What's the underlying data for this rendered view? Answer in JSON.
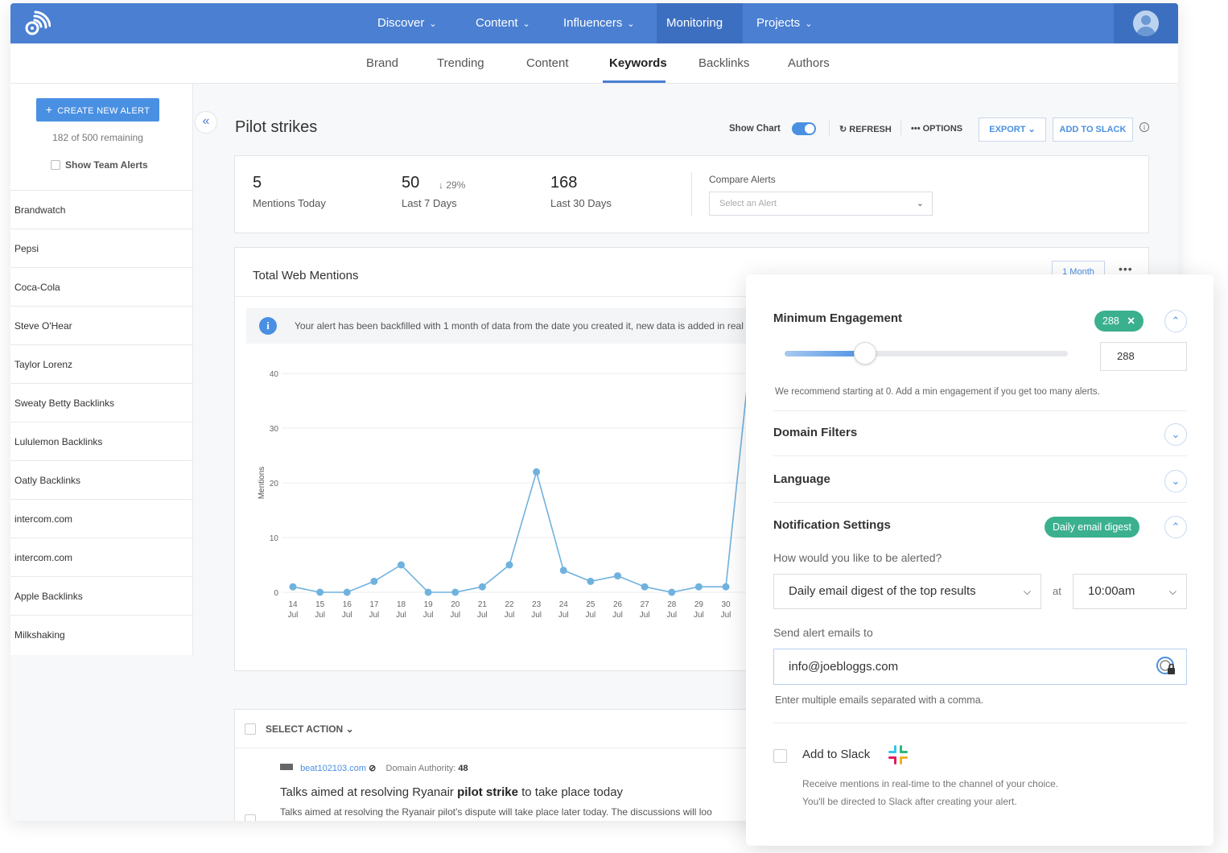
{
  "topnav": {
    "items": [
      {
        "label": "Discover"
      },
      {
        "label": "Content"
      },
      {
        "label": "Influencers"
      },
      {
        "label": "Monitoring"
      },
      {
        "label": "Projects"
      }
    ]
  },
  "subnav": {
    "tabs": [
      {
        "label": "Brand"
      },
      {
        "label": "Trending"
      },
      {
        "label": "Content"
      },
      {
        "label": "Keywords"
      },
      {
        "label": "Backlinks"
      },
      {
        "label": "Authors"
      }
    ]
  },
  "sidebar": {
    "create_label": "CREATE NEW ALERT",
    "remaining": "182 of 500 remaining",
    "team_alerts": "Show Team Alerts",
    "alerts": [
      "Brandwatch",
      "Pepsi",
      "Coca-Cola",
      "Steve O'Hear",
      "Taylor Lorenz",
      "Sweaty Betty Backlinks",
      "Lululemon Backlinks",
      "Oatly Backlinks",
      "intercom.com",
      "intercom.com",
      "Apple Backlinks",
      "Milkshaking"
    ]
  },
  "page": {
    "title": "Pilot strikes",
    "show_chart": "Show Chart",
    "refresh": "REFRESH",
    "options": "OPTIONS",
    "export": "EXPORT",
    "add_to_slack": "ADD TO SLACK"
  },
  "stats": {
    "today_value": "5",
    "today_label": "Mentions Today",
    "week_value": "50",
    "week_delta": "29%",
    "week_label": "Last 7 Days",
    "month_value": "168",
    "month_label": "Last 30 Days",
    "compare_label": "Compare Alerts",
    "compare_placeholder": "Select an Alert"
  },
  "chart_card": {
    "title": "Total Web Mentions",
    "period": "1 Month",
    "notice": "Your alert has been backfilled with 1 month of data from the date you created it, new data is added in real"
  },
  "chart_data": {
    "type": "line",
    "ylabel": "Mentions",
    "ylim": [
      0,
      40
    ],
    "yticks": [
      0,
      10,
      20,
      30,
      40
    ],
    "categories": [
      "14 Jul",
      "15 Jul",
      "16 Jul",
      "17 Jul",
      "18 Jul",
      "19 Jul",
      "20 Jul",
      "21 Jul",
      "22 Jul",
      "23 Jul",
      "24 Jul",
      "25 Jul",
      "26 Jul",
      "27 Jul",
      "28 Jul",
      "29 Jul",
      "30 Jul"
    ],
    "series": [
      {
        "name": "Pilot strikes",
        "color": "#6fb2de",
        "values": [
          1,
          0,
          0,
          2,
          5,
          0,
          0,
          1,
          5,
          22,
          4,
          2,
          3,
          1,
          0,
          1,
          1
        ]
      }
    ],
    "legend": "bottom"
  },
  "results": {
    "select_action": "SELECT ACTION",
    "source": "beat102103.com",
    "authority_label": "Domain Authority:",
    "authority_value": "48",
    "title_before": "Talks aimed at resolving Ryanair ",
    "title_bold": "pilot strike",
    "title_after": " to take place today",
    "snippet": "Talks aimed at resolving the Ryanair pilot's dispute will take place later today. The discussions will loo"
  },
  "panel": {
    "min_engagement": {
      "title": "Minimum Engagement",
      "chip": "288",
      "value": "288",
      "level": 0.29,
      "hint": "We recommend starting at 0. Add a min engagement if you get too many alerts."
    },
    "domain_filters": "Domain Filters",
    "language": "Language",
    "notifications": {
      "title": "Notification Settings",
      "chip": "Daily email digest",
      "question": "How would you like to be alerted?",
      "frequency": "Daily email digest of the top results",
      "at": "at",
      "time": "10:00am",
      "send_to_label": "Send alert emails to",
      "email": "info@joebloggs.com",
      "email_hint": "Enter multiple emails separated with a comma."
    },
    "slack": {
      "title": "Add to Slack",
      "desc1": "Receive mentions in real-time to the channel of your choice.",
      "desc2": "You'll be directed to Slack after creating your alert."
    }
  },
  "colors": {
    "brand": "#4a7fd1",
    "accent": "#4a90e2",
    "chip": "#3bb08f"
  }
}
